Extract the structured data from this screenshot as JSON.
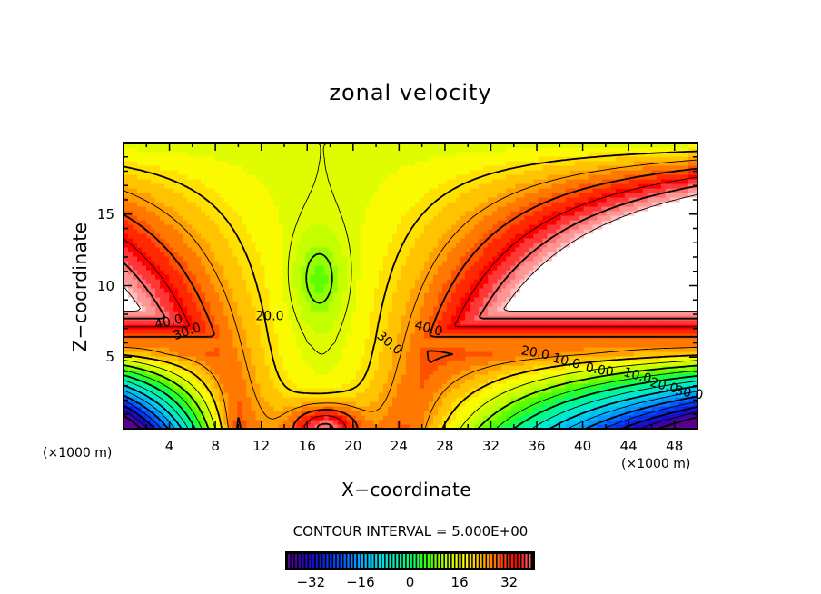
{
  "chart_data": {
    "type": "heatmap",
    "subtype": "filled-contour",
    "title": "zonal velocity",
    "xlabel": "X−coordinate",
    "ylabel": "Z−coordinate",
    "x_unit_left": "(×1000 m)",
    "x_unit_right": "(×1000 m)",
    "xlim": [
      0,
      50
    ],
    "ylim": [
      0,
      20
    ],
    "x_ticks": [
      "4",
      "8",
      "12",
      "16",
      "20",
      "24",
      "28",
      "32",
      "36",
      "40",
      "44",
      "48"
    ],
    "x_tick_values": [
      4,
      8,
      12,
      16,
      20,
      24,
      28,
      32,
      36,
      40,
      44,
      48
    ],
    "y_ticks": [
      "5",
      "10",
      "15"
    ],
    "y_tick_values": [
      5,
      10,
      15
    ],
    "contour_interval_text": "CONTOUR INTERVAL = 5.000E+00",
    "contour_interval": 5,
    "contour_labels": [
      "40.0",
      "30.0",
      "20.0",
      "30.0",
      "40.0",
      "20.0",
      "10.0",
      "0.00",
      "10.0",
      "20.0",
      "30.0"
    ],
    "colorbar": {
      "range": [
        -40,
        40
      ],
      "ticks": [
        "−32",
        "−16",
        "0",
        "16",
        "32"
      ],
      "tick_values": [
        -32,
        -16,
        0,
        16,
        32
      ],
      "colors": [
        "#5a0090",
        "#1010c8",
        "#0060ff",
        "#00d0ff",
        "#00ff90",
        "#30ff00",
        "#c0ff00",
        "#ffff00",
        "#ffb000",
        "#ff5000",
        "#ff0000",
        "#ff9090"
      ]
    },
    "features": {
      "vertical_jet_center_x": 17,
      "horizontal_jet_z": 6,
      "negative_lobe_left_center": [
        1,
        0
      ],
      "negative_lobe_right_center": [
        42,
        0
      ],
      "min_value": -40,
      "max_value": 45
    }
  }
}
